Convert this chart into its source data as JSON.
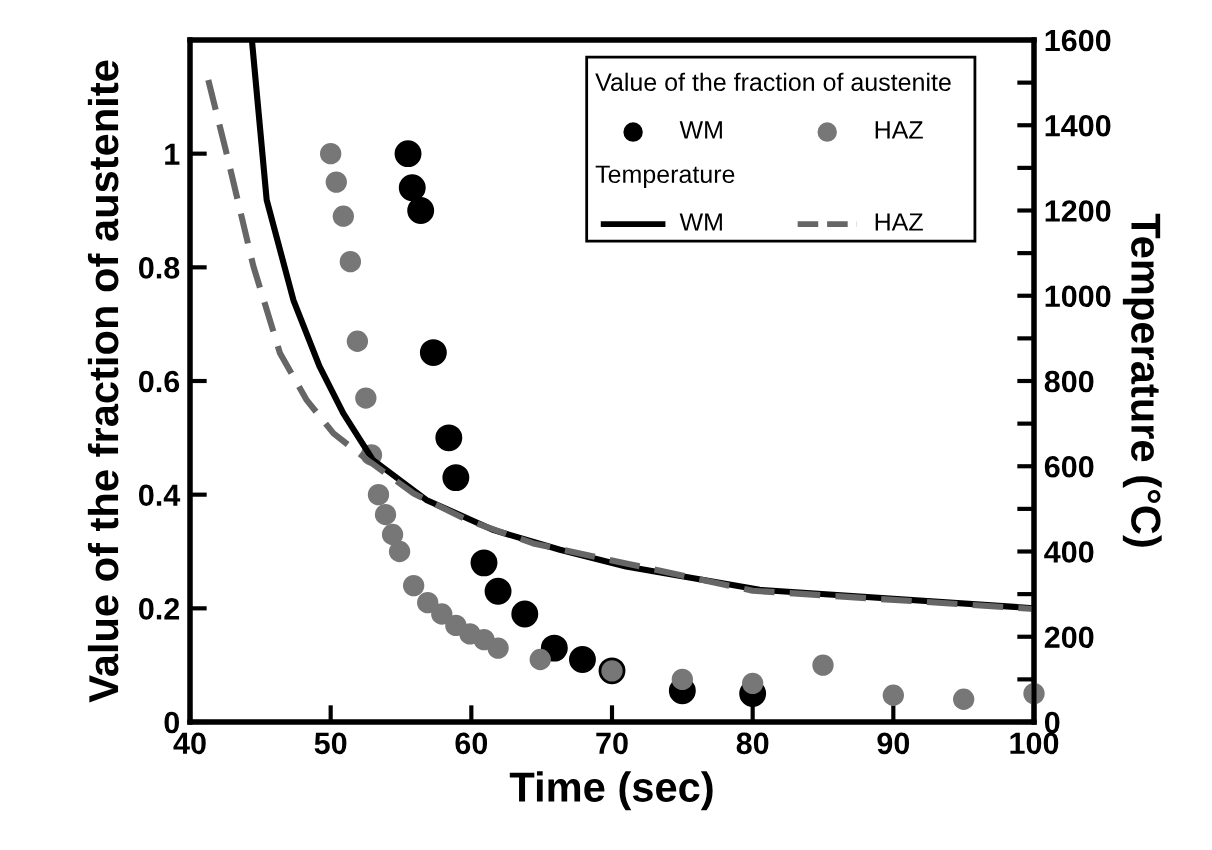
{
  "chart_data": {
    "type": "scatter",
    "xlabel": "Time (sec)",
    "ylabel": "Value of the fraction of austenite",
    "y2label": "Temperature (°C)",
    "annotations": [
      "Value of the fraction of austenite",
      "Temperature"
    ],
    "xlim": [
      40,
      100
    ],
    "xticks": [
      40,
      50,
      60,
      70,
      80,
      90,
      100
    ],
    "ylim": [
      0,
      1.2
    ],
    "yticks": [
      0,
      0.2,
      0.4,
      0.6,
      0.8,
      1
    ],
    "y2lim": [
      0,
      1600
    ],
    "y2ticks": [
      0,
      {
        "value": 100,
        "label": null
      },
      200,
      {
        "value": 300,
        "label": null
      },
      400,
      {
        "value": 500,
        "label": null
      },
      600,
      {
        "value": 700,
        "label": null
      },
      800,
      {
        "value": 900,
        "label": null
      },
      1000,
      {
        "value": 1100,
        "label": null
      },
      1200,
      {
        "value": 1300,
        "label": null
      },
      1400,
      {
        "value": 1500,
        "label": null
      },
      1600
    ],
    "grid": false,
    "legend": "top right",
    "series": [
      {
        "name": "WM",
        "color": "#000000",
        "marker": "circle",
        "x": [
          55.5,
          55.8,
          56.4,
          57.3,
          58.4,
          58.9,
          60.9,
          61.9,
          63.8,
          65.9,
          67.9,
          70,
          75,
          80
        ],
        "values": [
          1.0,
          0.94,
          0.9,
          0.65,
          0.5,
          0.43,
          0.28,
          0.23,
          0.19,
          0.13,
          0.11,
          0.09,
          0.055,
          0.05
        ]
      },
      {
        "name": "HAZ",
        "color": "#777777",
        "marker": "circle",
        "x": [
          50,
          50.4,
          50.9,
          51.4,
          51.9,
          52.5,
          52.9,
          53.4,
          53.9,
          54.4,
          54.9,
          55.9,
          56.9,
          57.9,
          58.9,
          59.9,
          60.9,
          61.9,
          64.9,
          70,
          75,
          80,
          85,
          90,
          95,
          100
        ],
        "values": [
          1.0,
          0.95,
          0.89,
          0.81,
          0.67,
          0.57,
          0.47,
          0.4,
          0.365,
          0.33,
          0.3,
          0.24,
          0.21,
          0.19,
          0.17,
          0.155,
          0.145,
          0.13,
          0.11,
          0.09,
          0.075,
          0.068,
          0.1,
          0.047,
          0.04,
          0.05
        ]
      },
      {
        "name": "WM",
        "type": "line",
        "axis": "y2",
        "color": "#000000",
        "line_style": "solid",
        "x": [
          44.4,
          45.45,
          47.35,
          49.2,
          50.9,
          53,
          56.8,
          61.6,
          66.3,
          71,
          80.5,
          100
        ],
        "values": [
          1600,
          1225,
          990,
          835,
          724,
          615,
          521,
          450,
          404,
          365,
          310,
          267
        ]
      },
      {
        "name": "HAZ",
        "type": "line",
        "axis": "y2",
        "color": "#666666",
        "line_style": "dashed",
        "x": [
          41.3,
          42.6,
          44.5,
          46.4,
          48.3,
          50.2,
          52.6,
          55.9,
          59.7,
          64.4,
          71,
          80,
          100
        ],
        "values": [
          1506,
          1334,
          1070,
          865,
          755,
          677,
          615,
          536,
          474,
          419,
          372,
          308,
          265
        ]
      }
    ]
  }
}
